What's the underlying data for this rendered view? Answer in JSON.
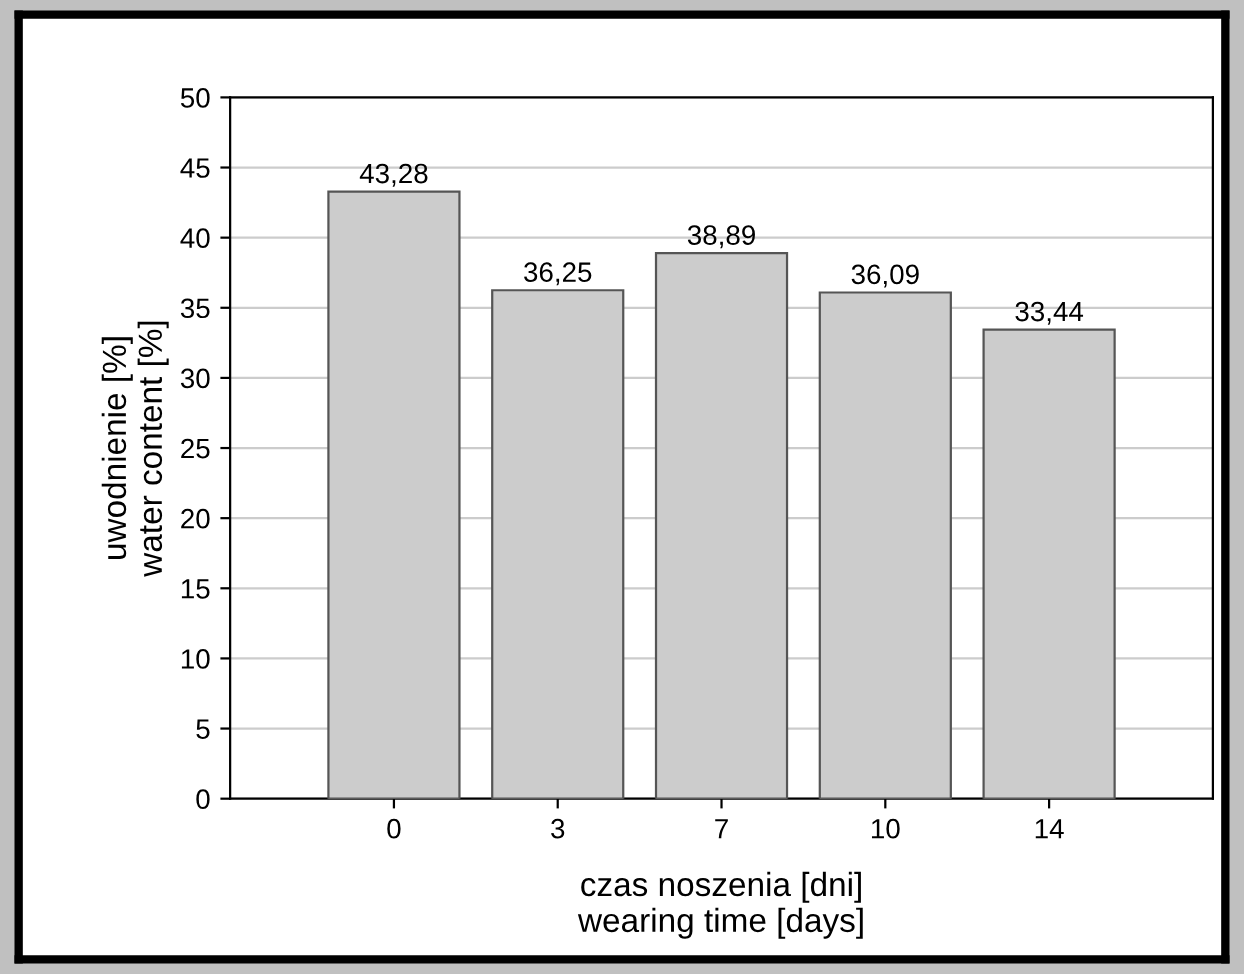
{
  "chart_data": {
    "type": "bar",
    "xlabel": "czas noszenia [dni]\nwearing time [days]",
    "ylabel": "uwodnienie [%]\nwater content [%]",
    "categories": [
      "0",
      "3",
      "7",
      "10",
      "14"
    ],
    "values": [
      43.28,
      36.25,
      38.89,
      36.09,
      33.44
    ],
    "value_labels": [
      "43,28",
      "36,25",
      "38,89",
      "36,09",
      "33,44"
    ],
    "color": "#cccccc",
    "ylim": [
      0,
      50
    ],
    "yticks": [
      0,
      5,
      10,
      15,
      20,
      25,
      30,
      35,
      40,
      45,
      50
    ],
    "grid": "y"
  }
}
